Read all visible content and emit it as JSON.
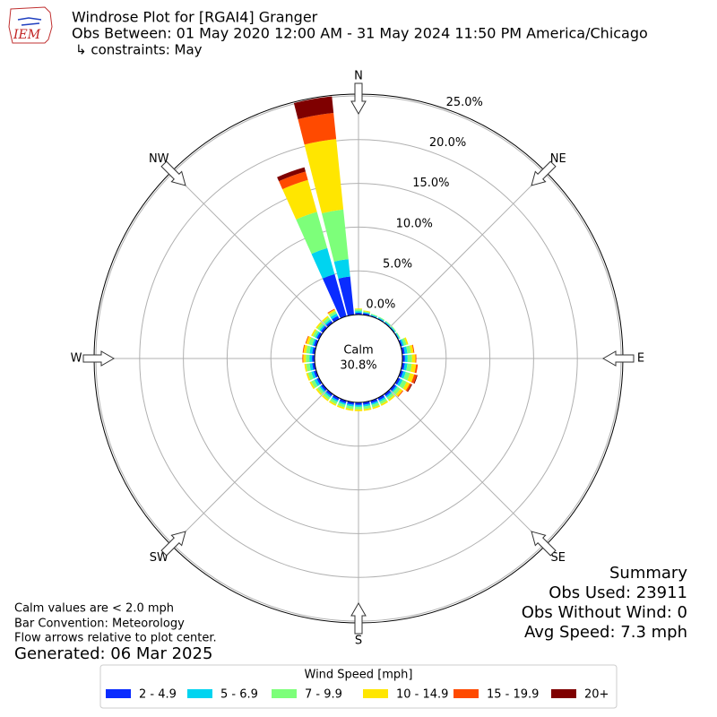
{
  "chart_data": {
    "type": "windrose",
    "logo_text": "IEM",
    "title": "Windrose Plot for [RGAI4] Granger",
    "subtitle": "Obs Between: 01 May 2020 12:00 AM - 31 May 2024 11:50 PM America/Chicago",
    "constraints": "↳ constraints: May",
    "compass_labels": [
      "N",
      "NE",
      "E",
      "SE",
      "S",
      "SW",
      "W",
      "NW"
    ],
    "calm": {
      "label": "Calm",
      "value": 30.8,
      "value_label": "30.8%"
    },
    "ylim": [
      0,
      25
    ],
    "yticks": [
      {
        "value": 0,
        "label": "0.0%"
      },
      {
        "value": 5,
        "label": "5.0%"
      },
      {
        "value": 10,
        "label": "10.0%"
      },
      {
        "value": 15,
        "label": "15.0%"
      },
      {
        "value": 20,
        "label": "20.0%"
      },
      {
        "value": 25,
        "label": "25.0%"
      }
    ],
    "x": [
      0,
      10,
      20,
      30,
      40,
      50,
      60,
      70,
      80,
      90,
      100,
      110,
      120,
      130,
      140,
      150,
      160,
      170,
      180,
      190,
      200,
      210,
      220,
      230,
      240,
      250,
      260,
      270,
      280,
      290,
      300,
      310,
      320,
      330,
      340,
      350
    ],
    "legend_title": "Wind Speed [mph]",
    "series": [
      {
        "name": "2 - 4.9",
        "color": "#0a2cff",
        "values": [
          0.2,
          0.2,
          0.1,
          0.1,
          0.1,
          0.1,
          0.1,
          0.2,
          0.3,
          0.3,
          0.3,
          0.3,
          0.3,
          0.3,
          0.3,
          0.3,
          0.3,
          0.3,
          0.3,
          0.3,
          0.3,
          0.3,
          0.3,
          0.3,
          0.3,
          0.3,
          0.3,
          0.3,
          0.3,
          0.3,
          0.3,
          0.3,
          0.3,
          0.4,
          5.0,
          4.4
        ]
      },
      {
        "name": "5 - 6.9",
        "color": "#00d4f0",
        "values": [
          0.2,
          0.1,
          0.1,
          0.1,
          0.1,
          0.1,
          0.1,
          0.2,
          0.3,
          0.3,
          0.3,
          0.3,
          0.3,
          0.2,
          0.2,
          0.2,
          0.2,
          0.2,
          0.2,
          0.2,
          0.2,
          0.2,
          0.2,
          0.2,
          0.3,
          0.3,
          0.3,
          0.3,
          0.3,
          0.2,
          0.2,
          0.2,
          0.2,
          0.3,
          3.1,
          2.0
        ]
      },
      {
        "name": "7 - 9.9",
        "color": "#7dff7a",
        "values": [
          0.2,
          0.1,
          0.1,
          0.1,
          0.1,
          0.1,
          0.1,
          0.3,
          0.4,
          0.5,
          0.5,
          0.5,
          0.5,
          0.4,
          0.3,
          0.3,
          0.3,
          0.3,
          0.3,
          0.3,
          0.3,
          0.3,
          0.3,
          0.3,
          0.4,
          0.4,
          0.4,
          0.4,
          0.4,
          0.4,
          0.3,
          0.3,
          0.3,
          0.3,
          4.3,
          5.7
        ]
      },
      {
        "name": "10 - 14.9",
        "color": "#ffe600",
        "values": [
          0.1,
          0.1,
          0,
          0,
          0,
          0,
          0,
          0.2,
          0.3,
          0.4,
          0.5,
          0.5,
          0.4,
          0.3,
          0.2,
          0.2,
          0.2,
          0.2,
          0.2,
          0.2,
          0.2,
          0.2,
          0.2,
          0.2,
          0.2,
          0.2,
          0.2,
          0.3,
          0.3,
          0.3,
          0.2,
          0.2,
          0.2,
          0.2,
          3.8,
          8.1
        ]
      },
      {
        "name": "15 - 19.9",
        "color": "#ff4a00",
        "values": [
          0,
          0,
          0,
          0,
          0,
          0,
          0,
          0,
          0.1,
          0.1,
          0.2,
          0.3,
          0.2,
          0.1,
          0,
          0,
          0,
          0,
          0,
          0,
          0,
          0,
          0,
          0,
          0,
          0,
          0,
          0.1,
          0.1,
          0.1,
          0,
          0,
          0,
          0.1,
          1.0,
          3.0
        ]
      },
      {
        "name": "20+",
        "color": "#7f0000",
        "values": [
          0,
          0,
          0,
          0,
          0,
          0,
          0,
          0,
          0,
          0,
          0,
          0.1,
          0.1,
          0,
          0,
          0,
          0,
          0,
          0,
          0,
          0,
          0,
          0,
          0,
          0,
          0,
          0,
          0,
          0,
          0,
          0,
          0,
          0,
          0,
          0.5,
          1.9
        ]
      }
    ],
    "notes": [
      "Calm values are < 2.0 mph",
      "Bar Convention: Meteorology",
      "Flow arrows relative to plot center."
    ],
    "generated": "Generated: 06 Mar 2025",
    "summary": [
      "Summary",
      "Obs Used: 23911",
      "Obs Without Wind: 0",
      "Avg Speed: 7.3 mph"
    ]
  }
}
